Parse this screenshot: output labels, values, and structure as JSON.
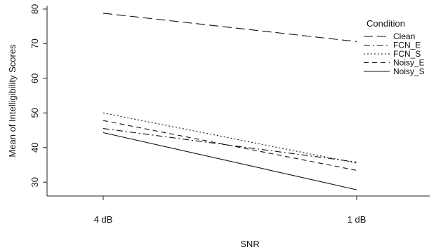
{
  "chart_data": {
    "type": "line",
    "categories": [
      "4 dB",
      "1 dB"
    ],
    "xlabel": "SNR",
    "ylabel": "Mean of Intelligibility Scores",
    "ylim": [
      26,
      81
    ],
    "yticks": [
      30,
      40,
      50,
      60,
      70,
      80
    ],
    "grid": false,
    "legend": {
      "title": "Condition",
      "placement": "top-right"
    },
    "series": [
      {
        "name": "Clean",
        "values": [
          78.8,
          70.6
        ],
        "dash": "long-dash"
      },
      {
        "name": "FCN_E",
        "values": [
          45.5,
          35.8
        ],
        "dash": "dot-dash"
      },
      {
        "name": "FCN_S",
        "values": [
          50.0,
          35.5
        ],
        "dash": "dotted"
      },
      {
        "name": "Noisy_E",
        "values": [
          47.8,
          33.4
        ],
        "dash": "dashed"
      },
      {
        "name": "Noisy_S",
        "values": [
          44.3,
          27.8
        ],
        "dash": "solid"
      }
    ]
  }
}
